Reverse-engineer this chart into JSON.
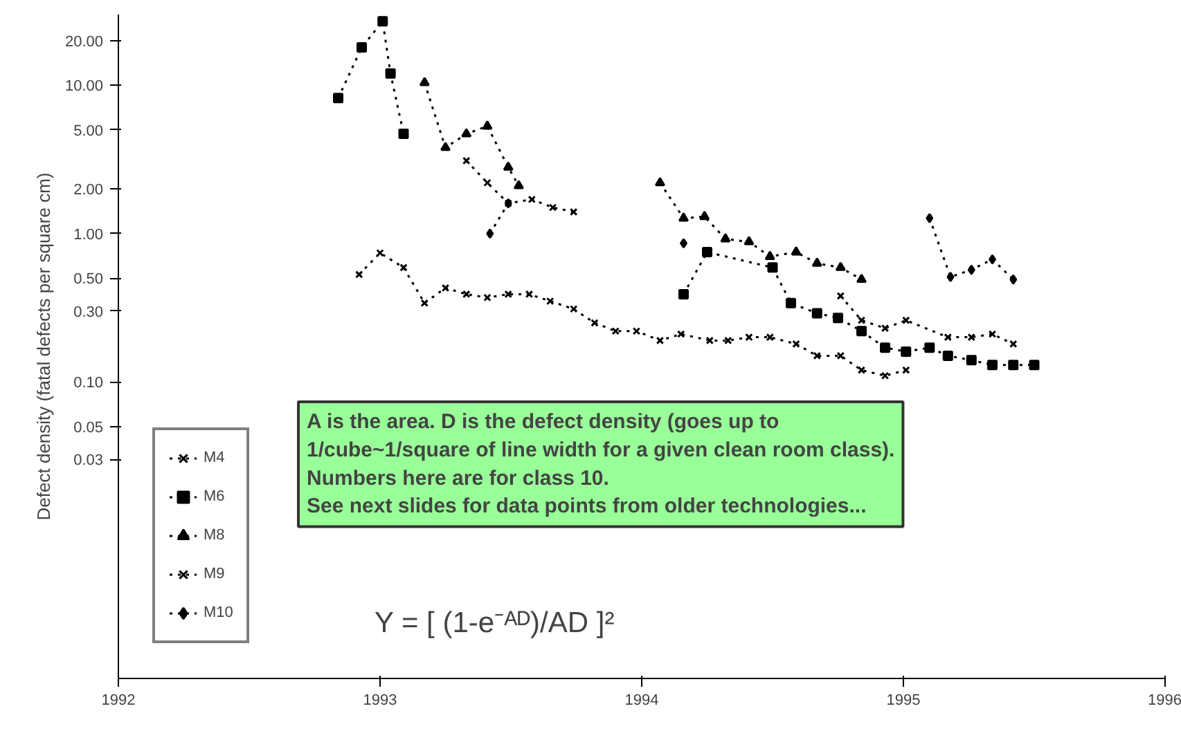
{
  "chart_data": {
    "type": "line",
    "ylabel": "Defect density (fatal defects per square cm)",
    "xlim": [
      1992,
      1996
    ],
    "xticks": [
      1992,
      1993,
      1994,
      1995,
      1996
    ],
    "ylim": [
      0.001,
      30
    ],
    "log": "y",
    "yticks": [
      {
        "value": 20,
        "label": "20.00"
      },
      {
        "value": 10,
        "label": "10.00"
      },
      {
        "value": 5,
        "label": "5.00"
      },
      {
        "value": 2,
        "label": "2.00"
      },
      {
        "value": 1,
        "label": "1.00"
      },
      {
        "value": 0.5,
        "label": "0.50"
      },
      {
        "value": 0.3,
        "label": "0.30"
      },
      {
        "value": 0.1,
        "label": "0.10"
      },
      {
        "value": 0.05,
        "label": "0.05"
      },
      {
        "value": 0.03,
        "label": "0.03"
      }
    ],
    "grid": false,
    "legend": "bottom left",
    "line_style": "dotted",
    "series": [
      {
        "name": "M4",
        "color": "#000000",
        "marker": "cross",
        "x": [
          1992.92,
          1993.0,
          1993.09,
          1993.17,
          1993.25,
          1993.33,
          1993.41,
          1993.49,
          1993.57,
          1993.65,
          1993.74,
          1993.82,
          1993.9,
          1993.98,
          1994.07,
          1994.15,
          1994.26,
          1994.33,
          1994.41,
          1994.49,
          1994.59,
          1994.67,
          1994.76,
          1994.84,
          1994.93,
          1995.01
        ],
        "values": [
          0.53,
          0.74,
          0.59,
          0.34,
          0.43,
          0.39,
          0.37,
          0.39,
          0.39,
          0.35,
          0.31,
          0.25,
          0.22,
          0.22,
          0.19,
          0.21,
          0.19,
          0.19,
          0.2,
          0.2,
          0.18,
          0.15,
          0.15,
          0.12,
          0.11,
          0.12
        ]
      },
      {
        "name": "M6",
        "color": "#000000",
        "marker": "square",
        "x": [
          1992.84,
          1992.93,
          1993.01,
          1993.04,
          1993.09,
          1993.5,
          1994.16,
          1994.25,
          1994.5,
          1994.57,
          1994.67,
          1994.75,
          1994.84,
          1994.93,
          1995.01,
          1995.1,
          1995.17,
          1995.26,
          1995.34,
          1995.42,
          1995.5
        ],
        "values": [
          8.2,
          18,
          27,
          12,
          4.7,
          null,
          0.39,
          0.75,
          0.59,
          0.34,
          0.29,
          0.27,
          0.22,
          0.17,
          0.16,
          0.17,
          0.15,
          0.14,
          0.13,
          0.13,
          0.13
        ]
      },
      {
        "name": "M8",
        "color": "#000000",
        "marker": "triangle",
        "x": [
          1993.17,
          1993.25,
          1993.33,
          1993.41,
          1993.49,
          1993.53,
          1993.8,
          1994.07,
          1994.16,
          1994.24,
          1994.32,
          1994.41,
          1994.49,
          1994.59,
          1994.67,
          1994.76,
          1994.84
        ],
        "values": [
          10.4,
          3.8,
          4.7,
          5.3,
          2.8,
          2.1,
          null,
          2.2,
          1.27,
          1.3,
          0.92,
          0.88,
          0.7,
          0.75,
          0.63,
          0.59,
          0.49
        ]
      },
      {
        "name": "M9",
        "color": "#000000",
        "marker": "cross",
        "x": [
          1993.33,
          1993.41,
          1993.49,
          1993.58,
          1993.66,
          1993.74,
          1994.2,
          1994.76,
          1994.84,
          1994.93,
          1995.01,
          1995.17,
          1995.26,
          1995.34,
          1995.42
        ],
        "values": [
          3.1,
          2.2,
          1.6,
          1.7,
          1.5,
          1.4,
          null,
          0.38,
          0.26,
          0.23,
          0.26,
          0.2,
          0.2,
          0.21,
          0.18
        ]
      },
      {
        "name": "M10",
        "color": "#000000",
        "marker": "diamond",
        "x": [
          1993.42,
          1993.49,
          1994.0,
          1994.16,
          1994.5,
          1995.1,
          1995.18,
          1995.26,
          1995.34,
          1995.42
        ],
        "values": [
          1.0,
          1.6,
          null,
          0.86,
          null,
          1.27,
          0.51,
          0.57,
          0.67,
          0.49
        ]
      }
    ],
    "annotations": [
      "A is the area. D is the defect density (goes up to\n1/cube~1/square of line width for a given clean room class).\nNumbers here are for class 10.\nSee next slides for data points from older technologies...",
      "Y = [ (1-e⁻ᴬᴰ)/AD ]²"
    ]
  }
}
